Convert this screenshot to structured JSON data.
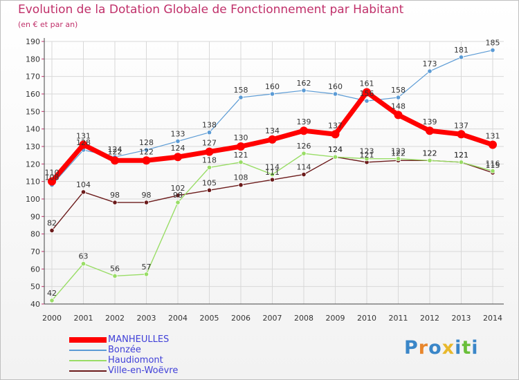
{
  "header": {
    "title": "Evolution de la Dotation Globale de Fonctionnement par Habitant",
    "subtitle": "(en € et par an)"
  },
  "chart_data": {
    "type": "line",
    "title": "Evolution de la Dotation Globale de Fonctionnement par Habitant",
    "ylabel": "(en € et par an)",
    "xlabel": "",
    "x": [
      "2000",
      "2001",
      "2002",
      "2003",
      "2004",
      "2005",
      "2006",
      "2007",
      "2008",
      "2009",
      "2010",
      "2011",
      "2012",
      "2013",
      "2014"
    ],
    "ylim": [
      40,
      190
    ],
    "yticks": [
      40,
      50,
      60,
      70,
      80,
      90,
      100,
      110,
      120,
      130,
      140,
      150,
      160,
      170,
      180,
      190
    ],
    "grid": true,
    "legend": "bottom-left",
    "series": [
      {
        "name": "MANHEULLES",
        "color": "#ff0000",
        "values": [
          110,
          131,
          122,
          122,
          124,
          127,
          130,
          134,
          139,
          137,
          161,
          148,
          139,
          137,
          131
        ]
      },
      {
        "name": "Bonzée",
        "color": "#5b9bd5",
        "values": [
          108,
          128,
          124,
          128,
          133,
          138,
          158,
          160,
          162,
          160,
          156,
          158,
          173,
          181,
          185
        ]
      },
      {
        "name": "Haudiomont",
        "color": "#99dd66",
        "values": [
          42,
          63,
          56,
          57,
          98,
          118,
          121,
          114,
          126,
          124,
          123,
          123,
          122,
          121,
          116
        ]
      },
      {
        "name": "Ville-en-Woëvre",
        "color": "#6b1a1a",
        "values": [
          82,
          104,
          98,
          98,
          102,
          105,
          108,
          111,
          114,
          124,
          121,
          122,
          122,
          121,
          115
        ]
      }
    ]
  },
  "brand": {
    "logo_text": "Proxiti"
  }
}
